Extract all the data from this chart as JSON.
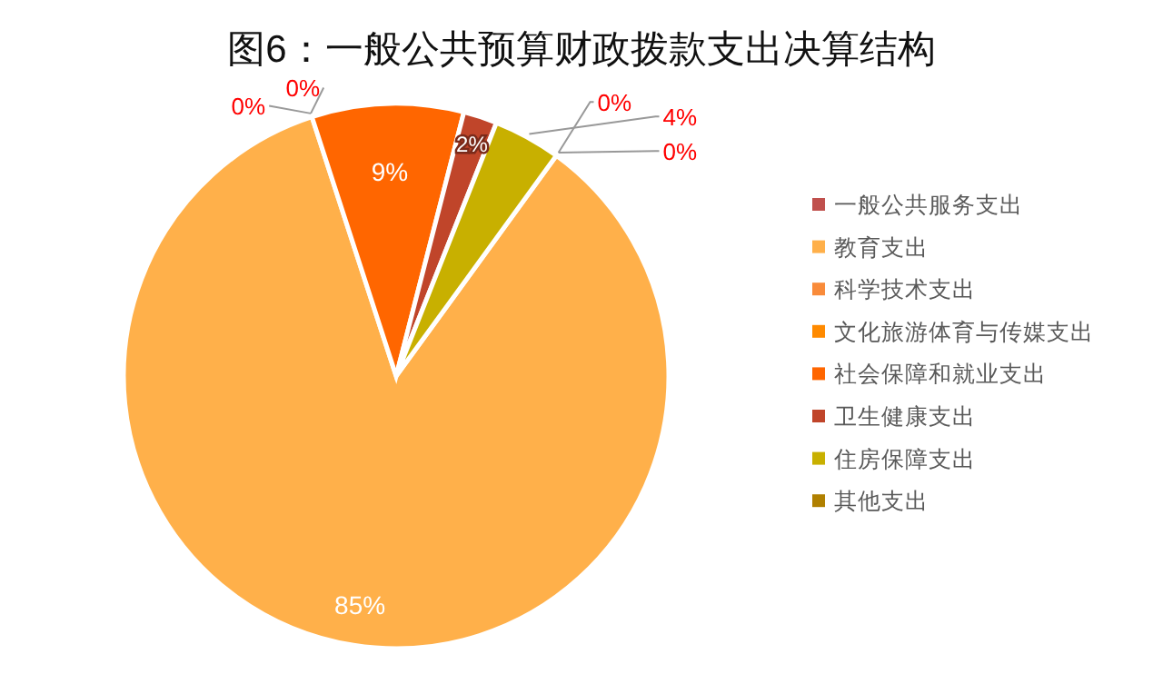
{
  "chart_data": {
    "type": "pie",
    "title": "图6：一般公共预算财政拨款支出决算结构",
    "categories": [
      "一般公共服务支出",
      "教育支出",
      "科学技术支出",
      "文化旅游体育与传媒支出",
      "社会保障和就业支出",
      "卫生健康支出",
      "住房保障支出",
      "其他支出"
    ],
    "values": [
      0,
      85,
      0,
      0,
      9,
      2,
      4,
      0
    ],
    "colors": [
      "#c0504d",
      "#ffb04a",
      "#f98b3a",
      "#ff8a00",
      "#ff6600",
      "#c0452a",
      "#c8b000",
      "#b08000"
    ],
    "value_labels": [
      "0%",
      "85%",
      "0%",
      "0%",
      "9%",
      "2%",
      "4%",
      "0%"
    ],
    "legend": "right"
  }
}
